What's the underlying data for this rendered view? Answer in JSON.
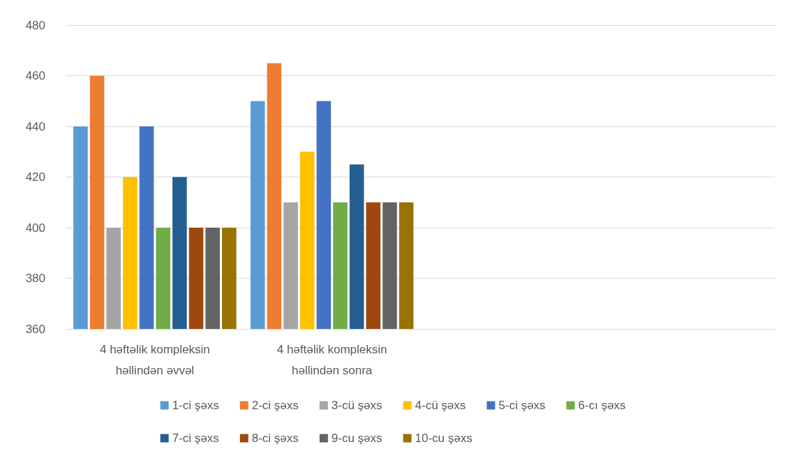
{
  "chart_data": {
    "type": "bar",
    "categories": [
      "4 həftəlik kompleksin həllindən əvvəl",
      "4 həftəlik kompleksin həllindən sonra",
      null,
      null
    ],
    "series": [
      {
        "name": "1-ci şəxs",
        "color": "#5b9bd5",
        "values": [
          440,
          450,
          null,
          null
        ]
      },
      {
        "name": "2-ci şəxs",
        "color": "#ed7d31",
        "values": [
          460,
          465,
          null,
          null
        ]
      },
      {
        "name": "3-cü şəxs",
        "color": "#a5a5a5",
        "values": [
          400,
          410,
          null,
          null
        ]
      },
      {
        "name": "4-cü şəxs",
        "color": "#ffc000",
        "values": [
          420,
          430,
          null,
          null
        ]
      },
      {
        "name": "5-ci şəxs",
        "color": "#4472c4",
        "values": [
          440,
          450,
          null,
          null
        ]
      },
      {
        "name": "6-cı şəxs",
        "color": "#70ad47",
        "values": [
          400,
          410,
          null,
          null
        ]
      },
      {
        "name": "7-ci şəxs",
        "color": "#255e91",
        "values": [
          420,
          425,
          null,
          null
        ]
      },
      {
        "name": "8-ci şəxs",
        "color": "#9e480e",
        "values": [
          400,
          410,
          null,
          null
        ]
      },
      {
        "name": "9-cu şəxs",
        "color": "#636363",
        "values": [
          400,
          410,
          null,
          null
        ]
      },
      {
        "name": "10-cu şəxs",
        "color": "#997300",
        "values": [
          400,
          410,
          null,
          null
        ]
      }
    ],
    "ylim": [
      360,
      480
    ],
    "yticks": [
      360,
      380,
      400,
      420,
      440,
      460,
      480
    ],
    "grid": "y",
    "legend": "bottom"
  }
}
